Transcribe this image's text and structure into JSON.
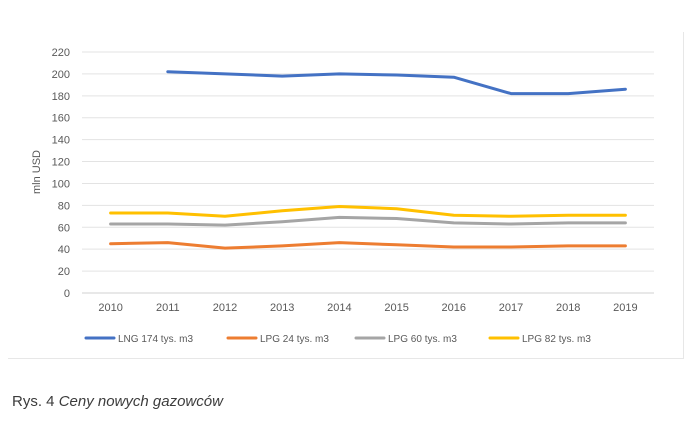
{
  "chart_data": {
    "type": "line",
    "title": "",
    "xlabel": "",
    "ylabel": "mln USD",
    "ylim": [
      0,
      220
    ],
    "yticks": [
      0,
      20,
      40,
      60,
      80,
      100,
      120,
      140,
      160,
      180,
      200,
      220
    ],
    "grid": true,
    "legend_position": "bottom",
    "categories": [
      "2010",
      "2011",
      "2012",
      "2013",
      "2014",
      "2015",
      "2016",
      "2017",
      "2018",
      "2019"
    ],
    "series": [
      {
        "name": "LNG 174 tys. m3",
        "color": "#4472c4",
        "values": [
          null,
          202,
          200,
          198,
          200,
          199,
          197,
          182,
          182,
          186
        ]
      },
      {
        "name": "LPG 24 tys. m3",
        "color": "#ed7d31",
        "values": [
          45,
          46,
          41,
          43,
          46,
          44,
          42,
          42,
          43,
          43
        ]
      },
      {
        "name": "LPG 60 tys. m3",
        "color": "#a5a5a5",
        "values": [
          63,
          63,
          62,
          65,
          69,
          68,
          64,
          63,
          64,
          64
        ]
      },
      {
        "name": "LPG 82 tys. m3",
        "color": "#ffc000",
        "values": [
          73,
          73,
          70,
          75,
          79,
          77,
          71,
          70,
          71,
          71
        ]
      }
    ]
  },
  "caption": {
    "label": "Rys. 4",
    "title": "Ceny nowych gazowców"
  }
}
